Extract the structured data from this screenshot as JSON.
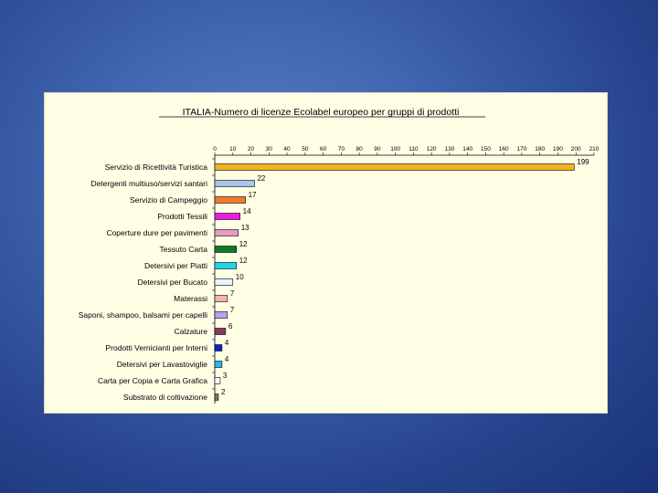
{
  "chart_data": {
    "type": "bar",
    "orientation": "horizontal",
    "title": "ITALIA-Numero di licenze Ecolabel europeo per gruppi di prodotti",
    "xlim": [
      0,
      210
    ],
    "xticks": [
      "0",
      "10",
      "20",
      "30",
      "40",
      "50",
      "60",
      "70",
      "80",
      "90",
      "100",
      "110",
      "120",
      "130",
      "140",
      "150",
      "160",
      "170",
      "180",
      "190",
      "200",
      "210"
    ],
    "grid": false,
    "legend": "none",
    "categories": [
      "Servizio di Ricettività Turistica",
      "Detergenti multiuso/servizi santari",
      "Servizio di Campeggio",
      "Prodotti Tessili",
      "Coperture dure per pavimenti",
      "Tessuto Carta",
      "Detersivi per Piatti",
      "Detersivi per Bucato",
      "Materassi",
      "Saponi, shampoo, balsami per capelli",
      "Calzature",
      "Prodotti Vernicianti per Interni",
      "Detersivi per Lavastoviglie",
      "Carta per Copia e Carta Grafica",
      "Substrato di coltivazione"
    ],
    "values": [
      199,
      22,
      17,
      14,
      13,
      12,
      12,
      10,
      7,
      7,
      6,
      4,
      4,
      3,
      2
    ],
    "value_labels": [
      "199",
      "22",
      "17",
      "14",
      "13",
      "12",
      "12",
      "10",
      "7",
      "7",
      "6",
      "4",
      "4",
      "3",
      "2"
    ],
    "colors": [
      "#f2b51f",
      "#a9c5ea",
      "#f07a2a",
      "#e91ee0",
      "#e89ac6",
      "#0e7a26",
      "#1fd6e8",
      "#e8f4fc",
      "#f2b8a0",
      "#b3a6ec",
      "#8a3a5a",
      "#1020c8",
      "#27b4ee",
      "#ffffff",
      "#6e8060"
    ]
  }
}
